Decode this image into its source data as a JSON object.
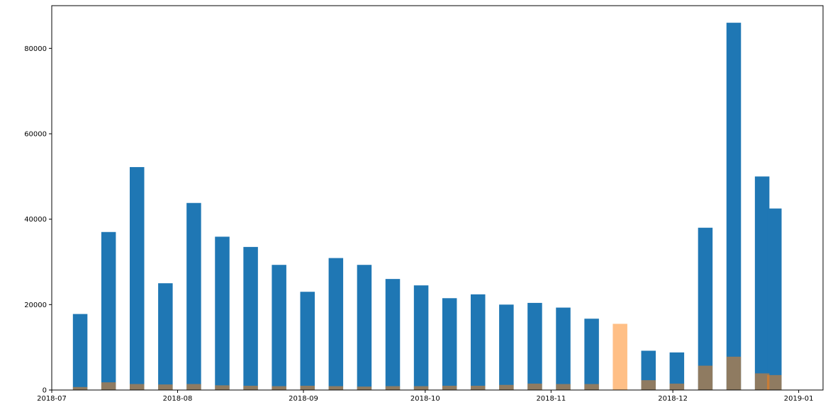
{
  "chart_data": {
    "type": "bar",
    "x_axis_type": "date",
    "x_range": [
      "2018-07-01",
      "2019-01-07"
    ],
    "ylim": [
      0,
      90000
    ],
    "grid": false,
    "legend": "none",
    "x_ticks": [
      {
        "date": "2018-07-01",
        "label": "2018-07"
      },
      {
        "date": "2018-08-01",
        "label": "2018-08"
      },
      {
        "date": "2018-09-01",
        "label": "2018-09"
      },
      {
        "date": "2018-10-01",
        "label": "2018-10"
      },
      {
        "date": "2018-11-01",
        "label": "2018-11"
      },
      {
        "date": "2018-12-01",
        "label": "2018-12"
      },
      {
        "date": "2019-01-01",
        "label": "2019-01"
      }
    ],
    "y_ticks": [
      {
        "value": 0,
        "label": "0"
      },
      {
        "value": 20000,
        "label": "20000"
      },
      {
        "value": 40000,
        "label": "40000"
      },
      {
        "value": 60000,
        "label": "60000"
      },
      {
        "value": 80000,
        "label": "80000"
      }
    ],
    "x": [
      "2018-07-08",
      "2018-07-15",
      "2018-07-22",
      "2018-07-29",
      "2018-08-05",
      "2018-08-12",
      "2018-08-19",
      "2018-08-26",
      "2018-09-02",
      "2018-09-09",
      "2018-09-16",
      "2018-09-23",
      "2018-09-30",
      "2018-10-07",
      "2018-10-14",
      "2018-10-21",
      "2018-10-28",
      "2018-11-04",
      "2018-11-11",
      "2018-11-18",
      "2018-11-25",
      "2018-12-02",
      "2018-12-09",
      "2018-12-16",
      "2018-12-23",
      "2018-12-26"
    ],
    "series": [
      {
        "color": "#1f77b4",
        "opacity": 1,
        "values": [
          17800,
          37000,
          52200,
          25000,
          43800,
          35900,
          33500,
          29300,
          23000,
          30900,
          29300,
          26000,
          24500,
          21500,
          22400,
          20000,
          20400,
          19300,
          16700,
          null,
          9200,
          8800,
          38000,
          86000,
          50000,
          42500
        ]
      },
      {
        "color": "#ff7f0e",
        "opacity": 0.5,
        "values": [
          700,
          1800,
          1400,
          1300,
          1400,
          1100,
          1000,
          900,
          1000,
          900,
          800,
          900,
          900,
          1000,
          1000,
          1200,
          1500,
          1400,
          1400,
          15500,
          2300,
          1500,
          5700,
          7800,
          3900,
          3500
        ]
      }
    ]
  }
}
